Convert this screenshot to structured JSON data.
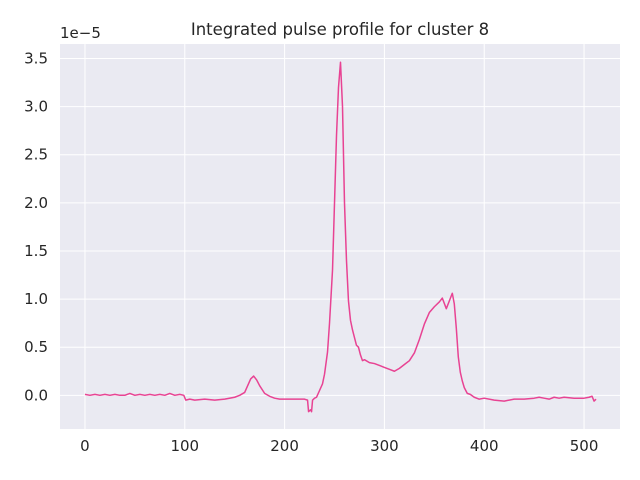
{
  "chart_data": {
    "type": "line",
    "title": "Integrated pulse profile for cluster 8",
    "xlabel": "",
    "ylabel": "",
    "y_offset_label": "1e−5",
    "xlim": [
      -25,
      536
    ],
    "ylim": [
      -0.35,
      3.65
    ],
    "x_ticks": [
      0,
      100,
      200,
      300,
      400,
      500
    ],
    "x_tick_labels": [
      "0",
      "100",
      "200",
      "300",
      "400",
      "500"
    ],
    "y_ticks": [
      0.0,
      0.5,
      1.0,
      1.5,
      2.0,
      2.5,
      3.0,
      3.5
    ],
    "y_tick_labels": [
      "0.0",
      "0.5",
      "1.0",
      "1.5",
      "2.0",
      "2.5",
      "3.0",
      "3.5"
    ],
    "grid": true,
    "background": "#eaeaf2",
    "series": [
      {
        "color": "#e84393",
        "x": [
          0,
          5,
          10,
          15,
          20,
          25,
          30,
          35,
          40,
          45,
          50,
          55,
          60,
          65,
          70,
          75,
          80,
          85,
          90,
          95,
          99,
          101,
          105,
          110,
          120,
          130,
          140,
          150,
          155,
          160,
          163,
          166,
          169,
          172,
          175,
          180,
          185,
          190,
          195,
          200,
          210,
          215,
          220,
          223,
          224,
          226,
          227,
          228,
          230,
          232,
          235,
          238,
          240,
          243,
          245,
          248,
          250,
          252,
          254,
          256,
          258,
          260,
          262,
          264,
          266,
          268,
          270,
          272,
          274,
          276,
          278,
          280,
          285,
          290,
          295,
          300,
          305,
          310,
          315,
          320,
          325,
          330,
          335,
          340,
          345,
          350,
          355,
          358,
          362,
          365,
          368,
          370,
          372,
          374,
          376,
          378,
          380,
          383,
          386,
          390,
          395,
          400,
          410,
          420,
          430,
          440,
          450,
          455,
          460,
          465,
          470,
          475,
          480,
          490,
          500,
          505,
          508,
          510,
          512
        ],
        "y": [
          0.01,
          0.0,
          0.01,
          0.0,
          0.01,
          0.0,
          0.01,
          0.0,
          0.0,
          0.02,
          0.0,
          0.01,
          0.0,
          0.01,
          0.0,
          0.01,
          0.0,
          0.02,
          0.0,
          0.01,
          0.0,
          -0.05,
          -0.04,
          -0.05,
          -0.04,
          -0.05,
          -0.04,
          -0.02,
          0.0,
          0.03,
          0.1,
          0.17,
          0.2,
          0.16,
          0.1,
          0.02,
          -0.01,
          -0.03,
          -0.04,
          -0.04,
          -0.04,
          -0.04,
          -0.04,
          -0.05,
          -0.17,
          -0.15,
          -0.17,
          -0.05,
          -0.03,
          -0.02,
          0.05,
          0.12,
          0.22,
          0.45,
          0.75,
          1.3,
          2.0,
          2.7,
          3.2,
          3.46,
          3.0,
          2.0,
          1.4,
          0.98,
          0.78,
          0.68,
          0.6,
          0.52,
          0.5,
          0.42,
          0.36,
          0.37,
          0.34,
          0.33,
          0.31,
          0.29,
          0.27,
          0.25,
          0.28,
          0.32,
          0.36,
          0.44,
          0.58,
          0.74,
          0.86,
          0.92,
          0.97,
          1.01,
          0.9,
          0.98,
          1.06,
          0.95,
          0.7,
          0.4,
          0.24,
          0.15,
          0.08,
          0.02,
          0.01,
          -0.02,
          -0.04,
          -0.03,
          -0.05,
          -0.06,
          -0.04,
          -0.04,
          -0.03,
          -0.02,
          -0.03,
          -0.04,
          -0.02,
          -0.03,
          -0.02,
          -0.03,
          -0.03,
          -0.02,
          -0.01,
          -0.06,
          -0.04
        ]
      }
    ]
  }
}
